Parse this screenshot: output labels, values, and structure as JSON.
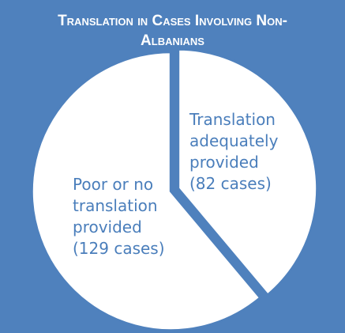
{
  "chart_data": {
    "type": "pie",
    "title": "Translation in Cases Involving Non-Albanians",
    "categories": [
      "Translation adequately provided",
      "Poor or no translation provided"
    ],
    "values": [
      82,
      129
    ],
    "value_labels": [
      "(82 cases)",
      "(129 cases)"
    ],
    "colors": [
      "#ffffff",
      "#ffffff"
    ],
    "background": "#4f81bd",
    "label_color": "#4a7ebb"
  }
}
